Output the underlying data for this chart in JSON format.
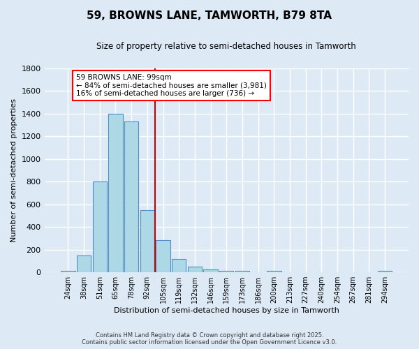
{
  "title": "59, BROWNS LANE, TAMWORTH, B79 8TA",
  "subtitle": "Size of property relative to semi-detached houses in Tamworth",
  "xlabel": "Distribution of semi-detached houses by size in Tamworth",
  "ylabel": "Number of semi-detached properties",
  "footer_line1": "Contains HM Land Registry data © Crown copyright and database right 2025.",
  "footer_line2": "Contains public sector information licensed under the Open Government Licence v3.0.",
  "annotation_title": "59 BROWNS LANE: 99sqm",
  "annotation_line2": "← 84% of semi-detached houses are smaller (3,981)",
  "annotation_line3": "16% of semi-detached houses are larger (736) →",
  "bar_labels": [
    "24sqm",
    "38sqm",
    "51sqm",
    "65sqm",
    "78sqm",
    "92sqm",
    "105sqm",
    "119sqm",
    "132sqm",
    "146sqm",
    "159sqm",
    "173sqm",
    "186sqm",
    "200sqm",
    "213sqm",
    "227sqm",
    "240sqm",
    "254sqm",
    "267sqm",
    "281sqm",
    "294sqm"
  ],
  "bar_values": [
    15,
    150,
    800,
    1400,
    1330,
    550,
    285,
    120,
    50,
    28,
    15,
    10,
    0,
    10,
    0,
    0,
    0,
    0,
    0,
    0,
    10
  ],
  "bar_color": "#add8e6",
  "bar_edgecolor": "#4d8fc4",
  "vline_color": "#cc0000",
  "vline_x_index": 6,
  "background_color": "#ddeaf6",
  "grid_color": "#ffffff",
  "ylim": [
    0,
    1800
  ],
  "yticks": [
    0,
    200,
    400,
    600,
    800,
    1000,
    1200,
    1400,
    1600,
    1800
  ]
}
